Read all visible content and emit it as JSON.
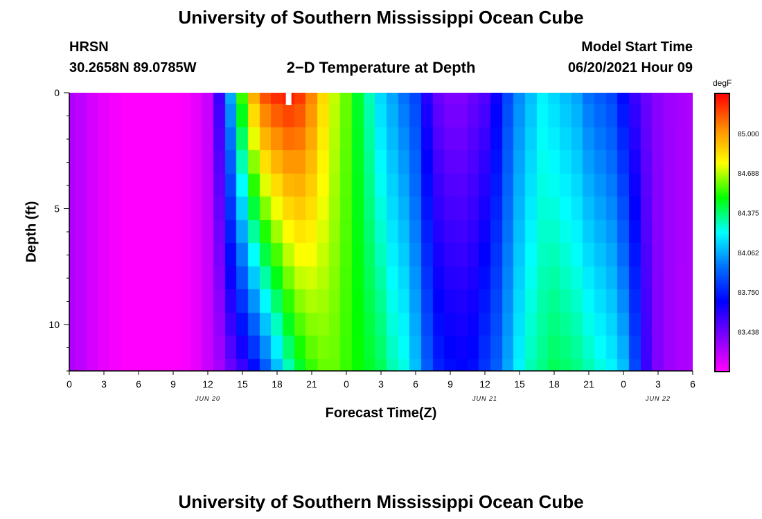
{
  "page": {
    "title_top": "University of Southern Mississippi Ocean Cube",
    "title_bottom": "University of Southern Mississippi Ocean Cube",
    "station": "HRSN",
    "coords": "30.2658N  89.0785W",
    "subtitle": "2−D Temperature at Depth",
    "model_label": "Model Start Time",
    "model_time": "06/20/2021 Hour 09"
  },
  "chart_data": {
    "type": "heatmap",
    "title": "2-D Temperature at Depth",
    "xlabel": "Forecast Time(Z)",
    "ylabel": "Depth (ft)",
    "x_ticks": [
      "0",
      "3",
      "6",
      "9",
      "12",
      "15",
      "18",
      "21",
      "0",
      "3",
      "6",
      "9",
      "12",
      "15",
      "18",
      "21",
      "0",
      "3",
      "6"
    ],
    "x_range_hours": [
      0,
      54
    ],
    "date_labels": [
      {
        "text": "JUN 20",
        "hour": 12
      },
      {
        "text": "JUN 21",
        "hour": 36
      },
      {
        "text": "JUN 22",
        "hour": 51
      }
    ],
    "y_ticks": [
      {
        "label": "0",
        "value": 0
      },
      {
        "label": "5",
        "value": 5
      },
      {
        "label": "10",
        "value": 10
      }
    ],
    "y_range_ft": [
      0,
      12
    ],
    "colorbar": {
      "unit": "degF",
      "min": 83.13,
      "max": 85.31,
      "ticks": [
        "85.000",
        "84.688",
        "84.375",
        "84.062",
        "83.750",
        "83.438"
      ],
      "tick_values": [
        85.0,
        84.688,
        84.375,
        84.062,
        83.75,
        83.438
      ],
      "colors": [
        "#ff00ff",
        "#7f00ff",
        "#0000ff",
        "#0070ff",
        "#00ffff",
        "#00ff00",
        "#ffff00",
        "#ff8c00",
        "#ff0000"
      ]
    },
    "marker_hour": 19,
    "depth_levels_ft": [
      0,
      1,
      2,
      3,
      4,
      5,
      6,
      7,
      8,
      9,
      10,
      11,
      12
    ],
    "time_series_hours": [
      0,
      1,
      2,
      3,
      4,
      5,
      6,
      7,
      8,
      9,
      10,
      11,
      12,
      13,
      14,
      15,
      16,
      17,
      18,
      19,
      20,
      21,
      22,
      23,
      24,
      25,
      26,
      27,
      28,
      29,
      30,
      31,
      32,
      33,
      34,
      35,
      36,
      37,
      38,
      39,
      40,
      41,
      42,
      43,
      44,
      45,
      46,
      47,
      48,
      49,
      50,
      51,
      52,
      53,
      54
    ],
    "surface_temps_degF": [
      83.3,
      83.27,
      83.22,
      83.18,
      83.15,
      83.13,
      83.13,
      83.13,
      83.13,
      83.13,
      83.14,
      83.18,
      83.25,
      83.55,
      84.05,
      84.55,
      84.95,
      85.15,
      85.22,
      85.25,
      85.2,
      85.05,
      84.85,
      84.7,
      84.6,
      84.45,
      84.3,
      84.15,
      84.05,
      83.95,
      83.85,
      83.6,
      83.45,
      83.4,
      83.4,
      83.45,
      83.5,
      83.65,
      83.85,
      84.0,
      84.1,
      84.2,
      84.15,
      84.1,
      84.05,
      83.95,
      83.9,
      83.85,
      83.7,
      83.55,
      83.45,
      83.38,
      83.34,
      83.32,
      83.3
    ],
    "bottom_temps_degF": [
      83.3,
      83.27,
      83.22,
      83.18,
      83.15,
      83.13,
      83.13,
      83.13,
      83.13,
      83.13,
      83.14,
      83.18,
      83.25,
      83.32,
      83.45,
      83.55,
      83.7,
      83.9,
      84.1,
      84.3,
      84.45,
      84.55,
      84.6,
      84.6,
      84.55,
      84.5,
      84.45,
      84.4,
      84.3,
      84.25,
      84.1,
      83.9,
      83.75,
      83.7,
      83.68,
      83.7,
      83.8,
      83.9,
      84.05,
      84.2,
      84.3,
      84.35,
      84.4,
      84.38,
      84.35,
      84.3,
      84.25,
      84.2,
      84.1,
      83.85,
      83.55,
      83.4,
      83.34,
      83.31,
      83.3
    ]
  }
}
